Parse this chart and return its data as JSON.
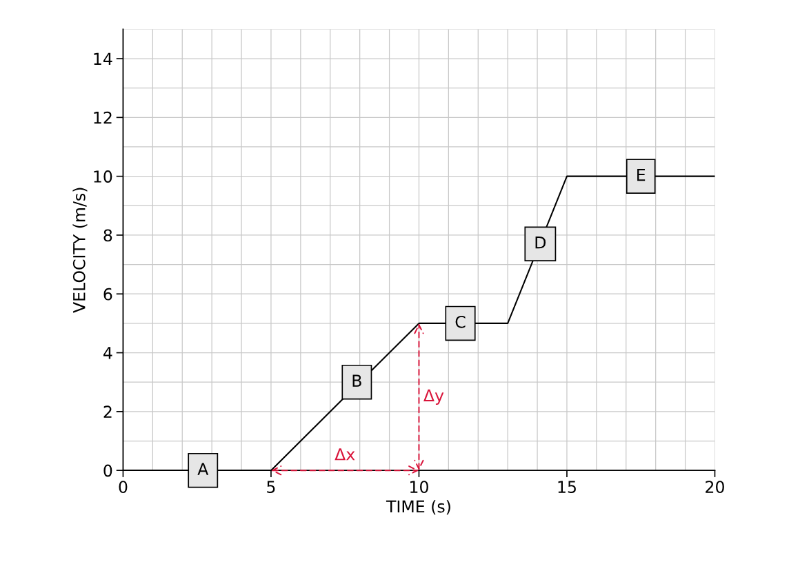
{
  "chart_data": {
    "type": "line",
    "xlabel": "TIME (s)",
    "ylabel": "VELOCITY (m/s)",
    "x": [
      0,
      5,
      10,
      13,
      15,
      20
    ],
    "series": [
      {
        "color": "#000000",
        "values": [
          0,
          0,
          5,
          5,
          10,
          10
        ]
      }
    ],
    "xlim": [
      0,
      20
    ],
    "ylim": [
      0,
      15
    ],
    "xticks": [
      0,
      5,
      10,
      15,
      20
    ],
    "yticks": [
      0,
      2,
      4,
      6,
      8,
      10,
      12,
      14
    ],
    "grid": true,
    "marker": "none",
    "annotations": [
      {
        "text": "A",
        "x": 2.7,
        "y": 0
      },
      {
        "text": "B",
        "x": 7.9,
        "y": 3.0
      },
      {
        "text": "C",
        "x": 11.4,
        "y": 5
      },
      {
        "text": "D",
        "x": 14.1,
        "y": 7.7
      },
      {
        "text": "E",
        "x": 17.5,
        "y": 10
      },
      "Δx",
      "Δy"
    ]
  }
}
